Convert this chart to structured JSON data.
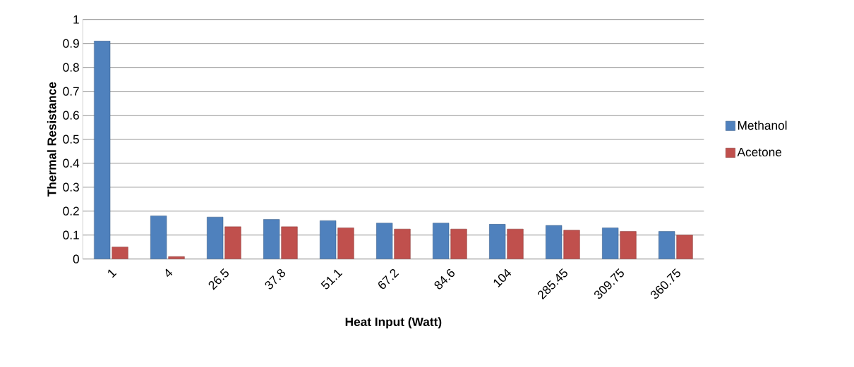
{
  "chart_data": {
    "type": "bar",
    "xlabel": "Heat Input (Watt)",
    "ylabel": "Thermal Resistance",
    "categories": [
      "1",
      "4",
      "26.5",
      "37.8",
      "51.1",
      "67.2",
      "84.6",
      "104",
      "285.45",
      "309.75",
      "360.75"
    ],
    "series": [
      {
        "name": "Methanol",
        "color": "#4f81bd",
        "values": [
          0.91,
          0.18,
          0.175,
          0.165,
          0.16,
          0.15,
          0.15,
          0.145,
          0.14,
          0.13,
          0.115
        ]
      },
      {
        "name": "Acetone",
        "color": "#c0504d",
        "values": [
          0.05,
          0.01,
          0.135,
          0.135,
          0.13,
          0.125,
          0.125,
          0.125,
          0.12,
          0.115,
          0.1
        ]
      }
    ],
    "ylim": [
      0,
      1
    ],
    "yticks": [
      0,
      0.1,
      0.2,
      0.3,
      0.4,
      0.5,
      0.6,
      0.7,
      0.8,
      0.9,
      1
    ],
    "grid": "y",
    "legend": "right"
  }
}
